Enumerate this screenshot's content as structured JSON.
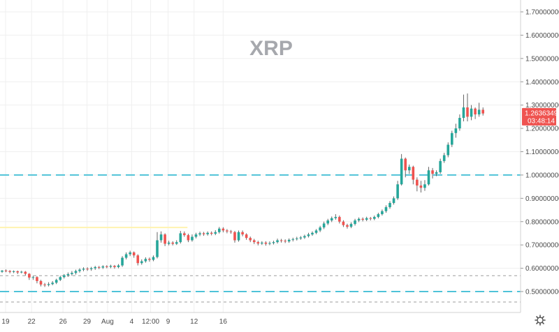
{
  "chart_data": {
    "type": "candlestick",
    "title": "XRP",
    "colors": {
      "up": "#26a69a",
      "down": "#ef5350",
      "wick": "#555555",
      "grid": "#efefef",
      "support_dashed": "#4fc3d8",
      "grey_dashed": "#9e9e9e",
      "trend_line": "#fff3b0",
      "price_tag": "#ef5350"
    },
    "y_axis": {
      "min": 0.44,
      "max": 1.72,
      "ticks": [
        "1.70000000",
        "1.60000000",
        "1.50000000",
        "1.40000000",
        "1.30000000",
        "1.20000000",
        "1.10000000",
        "1.00000000",
        "0.90000000",
        "0.80000000",
        "0.70000000",
        "0.60000000",
        "0.50000000"
      ]
    },
    "x_axis": {
      "labels": [
        {
          "text": "19",
          "t": 0.9
        },
        {
          "text": "22",
          "t": 7.6
        },
        {
          "text": "26",
          "t": 15.7
        },
        {
          "text": "29",
          "t": 21.9
        },
        {
          "text": "Aug",
          "t": 27.2
        },
        {
          "text": "4",
          "t": 33.4
        },
        {
          "text": "12:00",
          "t": 38.3
        },
        {
          "text": "9",
          "t": 42.8
        },
        {
          "text": "12",
          "t": 49.5
        },
        {
          "text": "16",
          "t": 57.0
        }
      ]
    },
    "horizontal_lines": [
      {
        "price": 1.0,
        "style": "support"
      },
      {
        "price": 0.5,
        "style": "support"
      },
      {
        "price": 0.568,
        "style": "grey"
      },
      {
        "price": 0.455,
        "style": "grey"
      }
    ],
    "trend_line": {
      "price": 0.775,
      "t_end": 47.8
    },
    "last_price": {
      "value": "1.26363492",
      "countdown": "03:48:14",
      "price": 1.2636
    },
    "candles": [
      [
        0.585,
        0.59,
        0.58,
        0.592
      ],
      [
        0.59,
        0.588,
        0.583,
        0.595
      ],
      [
        0.588,
        0.584,
        0.578,
        0.592
      ],
      [
        0.584,
        0.587,
        0.579,
        0.591
      ],
      [
        0.587,
        0.582,
        0.575,
        0.59
      ],
      [
        0.582,
        0.585,
        0.578,
        0.589
      ],
      [
        0.585,
        0.576,
        0.568,
        0.588
      ],
      [
        0.576,
        0.56,
        0.55,
        0.579
      ],
      [
        0.56,
        0.562,
        0.55,
        0.568
      ],
      [
        0.562,
        0.545,
        0.535,
        0.566
      ],
      [
        0.545,
        0.53,
        0.522,
        0.55
      ],
      [
        0.53,
        0.528,
        0.52,
        0.537
      ],
      [
        0.528,
        0.532,
        0.522,
        0.54
      ],
      [
        0.532,
        0.538,
        0.527,
        0.545
      ],
      [
        0.538,
        0.55,
        0.532,
        0.555
      ],
      [
        0.55,
        0.562,
        0.545,
        0.568
      ],
      [
        0.562,
        0.57,
        0.556,
        0.575
      ],
      [
        0.57,
        0.575,
        0.563,
        0.582
      ],
      [
        0.575,
        0.58,
        0.568,
        0.588
      ],
      [
        0.58,
        0.588,
        0.573,
        0.594
      ],
      [
        0.588,
        0.594,
        0.581,
        0.6
      ],
      [
        0.594,
        0.598,
        0.587,
        0.604
      ],
      [
        0.598,
        0.596,
        0.589,
        0.604
      ],
      [
        0.596,
        0.6,
        0.589,
        0.606
      ],
      [
        0.6,
        0.605,
        0.593,
        0.61
      ],
      [
        0.605,
        0.603,
        0.596,
        0.61
      ],
      [
        0.603,
        0.608,
        0.597,
        0.613
      ],
      [
        0.608,
        0.606,
        0.6,
        0.613
      ],
      [
        0.606,
        0.61,
        0.6,
        0.615
      ],
      [
        0.61,
        0.605,
        0.598,
        0.614
      ],
      [
        0.605,
        0.612,
        0.6,
        0.618
      ],
      [
        0.612,
        0.645,
        0.606,
        0.652
      ],
      [
        0.645,
        0.66,
        0.638,
        0.668
      ],
      [
        0.66,
        0.668,
        0.652,
        0.675
      ],
      [
        0.668,
        0.655,
        0.645,
        0.672
      ],
      [
        0.655,
        0.622,
        0.612,
        0.66
      ],
      [
        0.622,
        0.63,
        0.615,
        0.638
      ],
      [
        0.63,
        0.64,
        0.624,
        0.647
      ],
      [
        0.64,
        0.636,
        0.628,
        0.646
      ],
      [
        0.636,
        0.648,
        0.63,
        0.655
      ],
      [
        0.648,
        0.72,
        0.642,
        0.755
      ],
      [
        0.72,
        0.745,
        0.71,
        0.758
      ],
      [
        0.745,
        0.705,
        0.695,
        0.75
      ],
      [
        0.705,
        0.71,
        0.698,
        0.718
      ],
      [
        0.71,
        0.705,
        0.698,
        0.716
      ],
      [
        0.705,
        0.712,
        0.7,
        0.72
      ],
      [
        0.712,
        0.75,
        0.706,
        0.76
      ],
      [
        0.75,
        0.742,
        0.735,
        0.758
      ],
      [
        0.742,
        0.72,
        0.712,
        0.748
      ],
      [
        0.72,
        0.735,
        0.714,
        0.745
      ],
      [
        0.735,
        0.745,
        0.728,
        0.752
      ],
      [
        0.745,
        0.75,
        0.738,
        0.757
      ],
      [
        0.75,
        0.746,
        0.739,
        0.756
      ],
      [
        0.746,
        0.752,
        0.74,
        0.758
      ],
      [
        0.752,
        0.748,
        0.741,
        0.758
      ],
      [
        0.748,
        0.755,
        0.742,
        0.763
      ],
      [
        0.755,
        0.77,
        0.749,
        0.777
      ],
      [
        0.77,
        0.762,
        0.754,
        0.776
      ],
      [
        0.762,
        0.758,
        0.75,
        0.768
      ],
      [
        0.758,
        0.755,
        0.748,
        0.764
      ],
      [
        0.755,
        0.72,
        0.71,
        0.76
      ],
      [
        0.72,
        0.755,
        0.714,
        0.762
      ],
      [
        0.755,
        0.745,
        0.737,
        0.762
      ],
      [
        0.745,
        0.73,
        0.722,
        0.75
      ],
      [
        0.73,
        0.72,
        0.712,
        0.736
      ],
      [
        0.72,
        0.712,
        0.704,
        0.726
      ],
      [
        0.712,
        0.706,
        0.698,
        0.718
      ],
      [
        0.706,
        0.71,
        0.7,
        0.716
      ],
      [
        0.71,
        0.705,
        0.697,
        0.716
      ],
      [
        0.705,
        0.708,
        0.699,
        0.715
      ],
      [
        0.708,
        0.712,
        0.702,
        0.718
      ],
      [
        0.712,
        0.72,
        0.706,
        0.727
      ],
      [
        0.72,
        0.718,
        0.71,
        0.726
      ],
      [
        0.718,
        0.715,
        0.708,
        0.724
      ],
      [
        0.715,
        0.722,
        0.709,
        0.728
      ],
      [
        0.722,
        0.725,
        0.715,
        0.731
      ],
      [
        0.725,
        0.728,
        0.719,
        0.735
      ],
      [
        0.728,
        0.732,
        0.722,
        0.738
      ],
      [
        0.732,
        0.738,
        0.726,
        0.744
      ],
      [
        0.738,
        0.745,
        0.732,
        0.752
      ],
      [
        0.745,
        0.752,
        0.739,
        0.758
      ],
      [
        0.752,
        0.762,
        0.746,
        0.768
      ],
      [
        0.762,
        0.775,
        0.755,
        0.782
      ],
      [
        0.775,
        0.792,
        0.768,
        0.8
      ],
      [
        0.792,
        0.805,
        0.785,
        0.812
      ],
      [
        0.805,
        0.815,
        0.798,
        0.822
      ],
      [
        0.815,
        0.82,
        0.808,
        0.832
      ],
      [
        0.82,
        0.8,
        0.792,
        0.826
      ],
      [
        0.8,
        0.785,
        0.777,
        0.806
      ],
      [
        0.785,
        0.778,
        0.77,
        0.791
      ],
      [
        0.778,
        0.79,
        0.772,
        0.797
      ],
      [
        0.79,
        0.805,
        0.783,
        0.812
      ],
      [
        0.805,
        0.812,
        0.798,
        0.818
      ],
      [
        0.812,
        0.808,
        0.801,
        0.818
      ],
      [
        0.808,
        0.815,
        0.802,
        0.821
      ],
      [
        0.815,
        0.812,
        0.805,
        0.82
      ],
      [
        0.812,
        0.82,
        0.806,
        0.826
      ],
      [
        0.82,
        0.832,
        0.814,
        0.838
      ],
      [
        0.832,
        0.845,
        0.826,
        0.852
      ],
      [
        0.845,
        0.862,
        0.838,
        0.87
      ],
      [
        0.862,
        0.88,
        0.855,
        0.888
      ],
      [
        0.88,
        0.9,
        0.873,
        0.908
      ],
      [
        0.9,
        0.96,
        0.893,
        0.975
      ],
      [
        0.96,
        1.07,
        0.955,
        1.09
      ],
      [
        1.07,
        1.02,
        0.99,
        1.075
      ],
      [
        1.02,
        1.035,
        1.005,
        1.045
      ],
      [
        1.035,
        0.98,
        0.96,
        1.04
      ],
      [
        0.98,
        0.955,
        0.93,
        0.99
      ],
      [
        0.955,
        0.945,
        0.925,
        0.975
      ],
      [
        0.945,
        0.96,
        0.932,
        0.978
      ],
      [
        0.96,
        1.02,
        0.955,
        1.035
      ],
      [
        1.02,
        1.005,
        0.985,
        1.03
      ],
      [
        1.005,
        1.012,
        0.995,
        1.02
      ],
      [
        1.012,
        1.06,
        1.005,
        1.07
      ],
      [
        1.06,
        1.085,
        1.052,
        1.095
      ],
      [
        1.085,
        1.13,
        1.076,
        1.14
      ],
      [
        1.13,
        1.18,
        1.12,
        1.19
      ],
      [
        1.18,
        1.2,
        1.16,
        1.22
      ],
      [
        1.2,
        1.245,
        1.19,
        1.26
      ],
      [
        1.245,
        1.29,
        1.23,
        1.345
      ],
      [
        1.29,
        1.25,
        1.23,
        1.35
      ],
      [
        1.25,
        1.285,
        1.235,
        1.3
      ],
      [
        1.285,
        1.26,
        1.24,
        1.29
      ],
      [
        1.26,
        1.28,
        1.25,
        1.31
      ],
      [
        1.28,
        1.264,
        1.255,
        1.29
      ]
    ]
  }
}
